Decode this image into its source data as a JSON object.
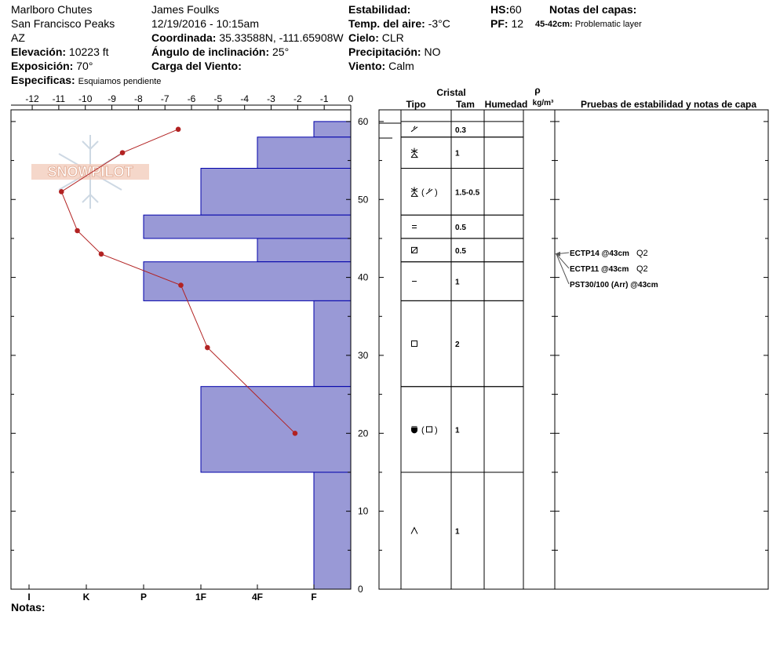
{
  "header": {
    "location": "Marlboro Chutes",
    "range": "San Francisco Peaks",
    "state": "AZ",
    "observer": "James Foulks",
    "datetime": "12/19/2016 - 10:15am",
    "elevation_label": "Elevación:",
    "elevation_value": "10223 ft",
    "aspect_label": "Exposición:",
    "aspect_value": "70°",
    "specifics_label": "Especificas:",
    "specifics_value": "Esquiamos pendiente",
    "coord_label": "Coordinada:",
    "coord_value": "35.33588N, -111.65908W",
    "incline_label": "Ángulo de inclinación:",
    "incline_value": "25°",
    "wind_load_label": "Carga del Viento:",
    "wind_load_value": "",
    "stability_label": "Estabilidad:",
    "stability_value": "",
    "air_temp_label": "Temp. del aire:",
    "air_temp_value": "-3°C",
    "sky_label": "Cielo:",
    "sky_value": "CLR",
    "precip_label": "Precipitación:",
    "precip_value": "NO",
    "wind_label": "Viento:",
    "wind_value": "Calm",
    "hs_label": "HS:",
    "hs_value": "60",
    "pf_label": "PF:",
    "pf_value": "12",
    "layer_notes_label": "Notas del capas:",
    "layer_note_range": "45-42cm:",
    "layer_note_text": "Problematic layer",
    "notes_label": "Notas:"
  },
  "watermark": "SNOWPILOT",
  "table_headers": {
    "cristal": "Cristal",
    "tipo": "Tipo",
    "tam": "Tam",
    "humedad": "Humedad",
    "rho": "ρ",
    "density_unit": "kg/m³",
    "stability": "Pruebas de estabilidad y notas de capa"
  },
  "chart_data": {
    "type": "snow_profile",
    "temperature_axis": {
      "ticks": [
        -12,
        -11,
        -10,
        -9,
        -8,
        -7,
        -6,
        -5,
        -4,
        -3,
        -2,
        -1,
        0
      ],
      "range": [
        -12.8,
        0
      ]
    },
    "depth_axis": {
      "ticks": [
        0,
        10,
        20,
        30,
        40,
        50,
        60
      ],
      "range": [
        0,
        60
      ]
    },
    "hardness_axis": {
      "labels": [
        "I",
        "K",
        "P",
        "1F",
        "4F",
        "F"
      ]
    },
    "hardness_profile": [
      {
        "top": 60,
        "bottom": 58,
        "hardness": "F"
      },
      {
        "top": 58,
        "bottom": 54,
        "hardness": "4F"
      },
      {
        "top": 54,
        "bottom": 48,
        "hardness": "1F"
      },
      {
        "top": 48,
        "bottom": 45,
        "hardness": "P"
      },
      {
        "top": 45,
        "bottom": 42,
        "hardness": "4F"
      },
      {
        "top": 42,
        "bottom": 37,
        "hardness": "P"
      },
      {
        "top": 37,
        "bottom": 26,
        "hardness": "F"
      },
      {
        "top": 26,
        "bottom": 15,
        "hardness": "1F"
      },
      {
        "top": 15,
        "bottom": 0,
        "hardness": "F"
      }
    ],
    "temperature_profile": [
      {
        "depth": 59,
        "temp": -6.5
      },
      {
        "depth": 56,
        "temp": -8.6
      },
      {
        "depth": 51,
        "temp": -10.9
      },
      {
        "depth": 46,
        "temp": -10.3
      },
      {
        "depth": 43,
        "temp": -9.4
      },
      {
        "depth": 39,
        "temp": -6.4
      },
      {
        "depth": 31,
        "temp": -5.4
      },
      {
        "depth": 20,
        "temp": -2.1
      }
    ],
    "layers": [
      {
        "top": 60,
        "bottom": 58,
        "crystal": "/",
        "size": "0.3"
      },
      {
        "top": 58,
        "bottom": 54,
        "crystal": "+",
        "size": "1"
      },
      {
        "top": 54,
        "bottom": 48,
        "crystal": "+(/)",
        "size": "1.5-0.5"
      },
      {
        "top": 48,
        "bottom": 45,
        "crystal": "=",
        "size": "0.5"
      },
      {
        "top": 45,
        "bottom": 42,
        "crystal": "box-slash",
        "size": "0.5"
      },
      {
        "top": 42,
        "bottom": 37,
        "crystal": "-",
        "size": "1"
      },
      {
        "top": 37,
        "bottom": 26,
        "crystal": "box",
        "size": "2"
      },
      {
        "top": 26,
        "bottom": 15,
        "crystal": "cup(box)",
        "size": "1"
      },
      {
        "top": 15,
        "bottom": 0,
        "crystal": "^",
        "size": "1"
      }
    ],
    "stability_tests": [
      {
        "text": "ECTP14 @43cm",
        "quality": "Q2",
        "depth": 43
      },
      {
        "text": "ECTP11 @43cm",
        "quality": "Q2",
        "depth": 43
      },
      {
        "text": "PST30/100 (Arr) @43cm",
        "quality": "",
        "depth": 43
      }
    ],
    "colors": {
      "hardness_fill": "#9999d6",
      "hardness_stroke": "#0000aa",
      "temp_line": "#b22222"
    }
  }
}
